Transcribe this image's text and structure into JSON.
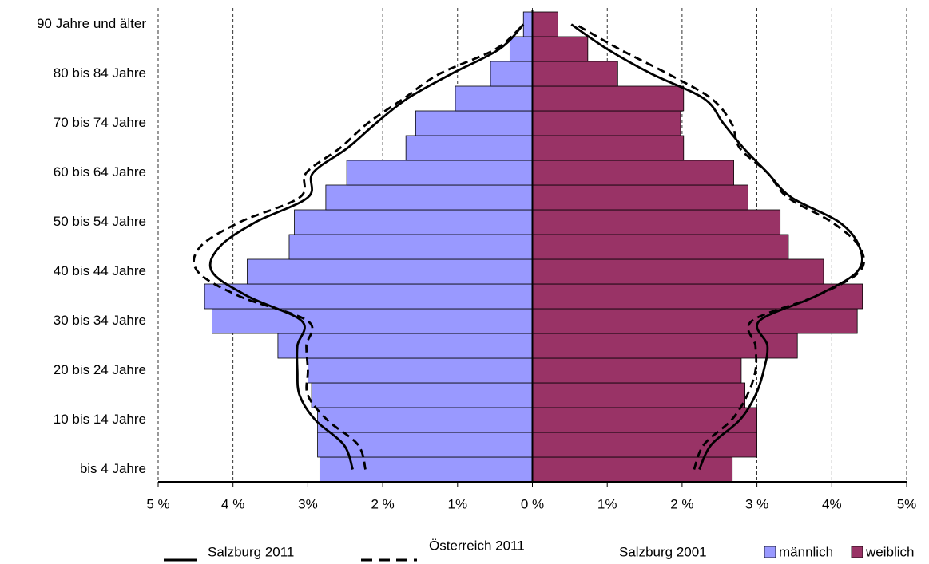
{
  "chart_data": {
    "type": "pyramid",
    "categories": [
      "bis 4 Jahre",
      null,
      "10 bis 14 Jahre",
      null,
      "20 bis 24 Jahre",
      null,
      "30 bis 34 Jahre",
      null,
      "40 bis 44 Jahre",
      null,
      "50 bis 54 Jahre",
      null,
      "60 bis 64 Jahre",
      null,
      "70 bis 74 Jahre",
      null,
      "80 bis 84 Jahre",
      null,
      "90 Jahre und älter"
    ],
    "xlim": [
      -5,
      5
    ],
    "xticks": [
      {
        "value": -5,
        "label": "5 %"
      },
      {
        "value": -4,
        "label": "4 %"
      },
      {
        "value": -3,
        "label": "3%"
      },
      {
        "value": -2,
        "label": "2 %"
      },
      {
        "value": -1,
        "label": "1%"
      },
      {
        "value": 0,
        "label": "0 %"
      },
      {
        "value": 1,
        "label": "1%"
      },
      {
        "value": 2,
        "label": "2 %"
      },
      {
        "value": 3,
        "label": "3 %"
      },
      {
        "value": 4,
        "label": "4%"
      },
      {
        "value": 5,
        "label": "5%"
      }
    ],
    "grid": true,
    "bars": [
      {
        "name": "männlich",
        "color": "#9999ff",
        "side": "left",
        "values": [
          2.84,
          2.87,
          2.87,
          2.95,
          3.0,
          3.4,
          4.28,
          4.38,
          3.81,
          3.25,
          3.18,
          2.76,
          2.48,
          1.69,
          1.56,
          1.03,
          0.56,
          0.3,
          0.12
        ]
      },
      {
        "name": "weiblich",
        "color": "#993366",
        "side": "right",
        "values": [
          2.67,
          3.0,
          3.0,
          2.84,
          2.79,
          3.54,
          4.34,
          4.41,
          3.89,
          3.42,
          3.31,
          2.88,
          2.69,
          2.02,
          1.98,
          2.02,
          1.14,
          0.74,
          0.34
        ]
      }
    ],
    "lines": [
      {
        "name": "Salzburg 2011",
        "dash": "solid",
        "male": [
          2.4,
          2.52,
          2.9,
          3.11,
          3.14,
          3.14,
          3.08,
          3.8,
          4.28,
          4.18,
          3.7,
          3.0,
          2.93,
          2.47,
          2.09,
          1.67,
          1.08,
          0.44,
          0.12
        ],
        "female": [
          2.23,
          2.39,
          2.77,
          2.98,
          3.09,
          3.14,
          3.03,
          3.78,
          4.34,
          4.37,
          4.1,
          3.46,
          3.14,
          2.82,
          2.55,
          2.29,
          1.59,
          1.0,
          0.52
        ]
      },
      {
        "name": "Österreich 2011",
        "dash": "dashed",
        "male": [
          2.23,
          2.33,
          2.74,
          3.0,
          3.0,
          3.02,
          3.0,
          3.91,
          4.47,
          4.44,
          3.91,
          3.11,
          3.02,
          2.57,
          2.2,
          1.72,
          1.24,
          0.49,
          0.12
        ],
        "female": [
          2.16,
          2.29,
          2.66,
          2.87,
          2.98,
          2.98,
          2.93,
          3.78,
          4.37,
          4.37,
          4.0,
          3.41,
          3.14,
          2.77,
          2.66,
          2.39,
          1.81,
          1.16,
          0.58
        ]
      },
      {
        "name": "Salzburg 2001",
        "dash": "none"
      }
    ]
  }
}
